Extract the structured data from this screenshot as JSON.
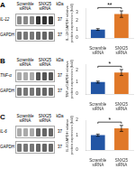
{
  "chart_data": [
    {
      "type": "bar",
      "title": "A",
      "categories": [
        "Scramble\nsiRNA",
        "SNX25\nsiRNA"
      ],
      "values": [
        1.0,
        2.8
      ],
      "errors": [
        0.1,
        0.38
      ],
      "colors": [
        "#2255a4",
        "#e07828"
      ],
      "ylabel": "IL-12/GAPDH relative\nprotein expression (fold)",
      "ylim": [
        0,
        3.5
      ],
      "yticks": [
        0,
        1,
        2,
        3
      ],
      "grid": false,
      "annotations": [
        "**"
      ],
      "blot": {
        "columns": [
          "Scramble\nsiRNA",
          "SNX25\nsiRNA",
          "kDa"
        ],
        "rows": [
          {
            "label": "IL-12",
            "colors": [
              "#888888",
              "#333333"
            ],
            "kda": 37
          },
          {
            "label": "GAPDH",
            "colors": [
              "#777777",
              "#666666"
            ],
            "kda": 37
          }
        ]
      }
    },
    {
      "type": "bar",
      "title": "B",
      "categories": [
        "Scramble\nsiRNA",
        "SNX25\nsiRNA"
      ],
      "values": [
        1.0,
        1.8
      ],
      "errors": [
        0.08,
        0.25
      ],
      "colors": [
        "#2255a4",
        "#e07828"
      ],
      "ylabel": "TNF-α/GAPDH relative\nprotein expression (fold)",
      "ylim": [
        0,
        2.5
      ],
      "yticks": [
        0,
        1,
        2
      ],
      "grid": false,
      "annotations": [
        "*"
      ],
      "blot": {
        "columns": [
          "Scramble\nsiRNA",
          "SNX25\nsiRNA",
          "kDa"
        ],
        "rows": [
          {
            "label": "TNF-α",
            "colors": [
              "#aaaaaa",
              "#555555"
            ],
            "kda": 37
          },
          {
            "label": "GAPDH",
            "colors": [
              "#777777",
              "#666666"
            ],
            "kda": 37
          }
        ]
      }
    },
    {
      "type": "bar",
      "title": "C",
      "categories": [
        "Scramble\nsiRNA",
        "SNX25\nsiRNA"
      ],
      "values": [
        1.0,
        1.45
      ],
      "errors": [
        0.07,
        0.2
      ],
      "colors": [
        "#2255a4",
        "#e07828"
      ],
      "ylabel": "IL-6/GAPDH relative\nprotein expression (fold)",
      "ylim": [
        0,
        2.0
      ],
      "yticks": [
        0,
        1,
        2
      ],
      "grid": false,
      "annotations": [
        "*"
      ],
      "blot": {
        "columns": [
          "Scramble\nsiRNA",
          "SNX25\nsiRNA",
          "kDa"
        ],
        "rows": [
          {
            "label": "IL-6",
            "colors": [
              "#aaaaaa",
              "#666666"
            ],
            "kda": 37
          },
          {
            "label": "GAPDH",
            "colors": [
              "#777777",
              "#666666"
            ],
            "kda": 37
          }
        ]
      }
    }
  ]
}
